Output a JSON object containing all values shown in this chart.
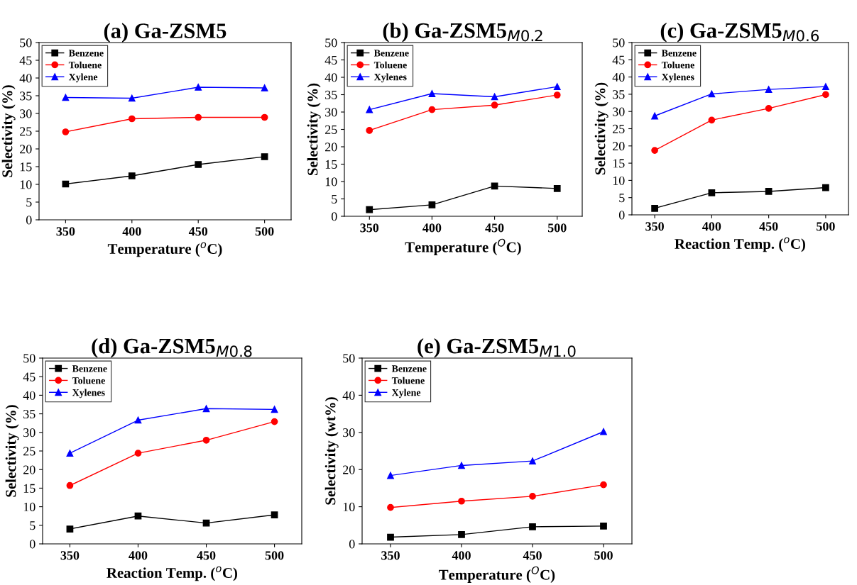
{
  "chart_data": [
    {
      "type": "line",
      "title": "(a) Ga-ZSM5",
      "xlabel": "Temperature ($^{o}$C)",
      "ylabel": "Selectivity (%)",
      "x": [
        350,
        400,
        450,
        500
      ],
      "xlim": [
        330,
        520
      ],
      "xticks": [
        350,
        400,
        450,
        500
      ],
      "ylim": [
        0,
        50
      ],
      "yticks": [
        0,
        5,
        10,
        15,
        20,
        25,
        30,
        35,
        40,
        45,
        50
      ],
      "legend": "top left",
      "grid": false,
      "series": [
        {
          "name": "Benzene",
          "color": "#000000",
          "marker": "square",
          "values": [
            10.1,
            12.4,
            15.6,
            17.8
          ]
        },
        {
          "name": "Toluene",
          "color": "#ff0000",
          "marker": "circle",
          "values": [
            24.8,
            28.5,
            28.9,
            28.9
          ]
        },
        {
          "name": "Xylene",
          "color": "#0000ff",
          "marker": "triangle",
          "values": [
            34.5,
            34.3,
            37.4,
            37.2
          ]
        }
      ]
    },
    {
      "type": "line",
      "title": "(b) Ga-ZSM5$_{M0.2}$",
      "xlabel": "Temperature ($^{O}$C)",
      "ylabel": "Selectivity (%)",
      "x": [
        350,
        400,
        450,
        500
      ],
      "xlim": [
        330,
        520
      ],
      "xticks": [
        350,
        400,
        450,
        500
      ],
      "ylim": [
        0,
        50
      ],
      "yticks": [
        0,
        5,
        10,
        15,
        20,
        25,
        30,
        35,
        40,
        45,
        50
      ],
      "legend": "top left",
      "grid": false,
      "series": [
        {
          "name": "Benzene",
          "color": "#000000",
          "marker": "square",
          "values": [
            1.9,
            3.3,
            8.7,
            8.0
          ]
        },
        {
          "name": "Toluene",
          "color": "#ff0000",
          "marker": "circle",
          "values": [
            24.7,
            30.7,
            32.0,
            34.9
          ]
        },
        {
          "name": "Xylenes",
          "color": "#0000ff",
          "marker": "triangle",
          "values": [
            30.7,
            35.3,
            34.4,
            37.3
          ]
        }
      ]
    },
    {
      "type": "line",
      "title": "(c) Ga-ZSM5$_{M0.6}$",
      "xlabel": "Reaction Temp. ($^{o}$C)",
      "ylabel": "Selectivity (%)",
      "x": [
        350,
        400,
        450,
        500
      ],
      "xlim": [
        330,
        520
      ],
      "xticks": [
        350,
        400,
        450,
        500
      ],
      "ylim": [
        0,
        50
      ],
      "yticks": [
        0,
        5,
        10,
        15,
        20,
        25,
        30,
        35,
        40,
        45,
        50
      ],
      "legend": "top left",
      "grid": false,
      "series": [
        {
          "name": "Benzene",
          "color": "#000000",
          "marker": "square",
          "values": [
            1.9,
            6.4,
            6.8,
            7.9
          ]
        },
        {
          "name": "Toluene",
          "color": "#ff0000",
          "marker": "circle",
          "values": [
            18.7,
            27.5,
            30.9,
            34.9
          ]
        },
        {
          "name": "Xylenes",
          "color": "#0000ff",
          "marker": "triangle",
          "values": [
            28.7,
            35.1,
            36.4,
            37.2
          ]
        }
      ]
    },
    {
      "type": "line",
      "title": "(d) Ga-ZSM5$_{M0.8}$",
      "xlabel": "Reaction Temp. ($^{o}$C)",
      "ylabel": "Selectivity (%)",
      "x": [
        350,
        400,
        450,
        500
      ],
      "xlim": [
        330,
        520
      ],
      "xticks": [
        350,
        400,
        450,
        500
      ],
      "ylim": [
        0,
        50
      ],
      "yticks": [
        0,
        5,
        10,
        15,
        20,
        25,
        30,
        35,
        40,
        45,
        50
      ],
      "legend": "top left",
      "grid": false,
      "series": [
        {
          "name": "Benzene",
          "color": "#000000",
          "marker": "square",
          "values": [
            4.0,
            7.5,
            5.6,
            7.8
          ]
        },
        {
          "name": "Toluene",
          "color": "#ff0000",
          "marker": "circle",
          "values": [
            15.7,
            24.4,
            27.9,
            32.9
          ]
        },
        {
          "name": "Xylenes",
          "color": "#0000ff",
          "marker": "triangle",
          "values": [
            24.4,
            33.3,
            36.4,
            36.2
          ]
        }
      ]
    },
    {
      "type": "line",
      "title": "(e) Ga-ZSM5$_{M1.0}$",
      "xlabel": "Temperature ($^{O}$C)",
      "ylabel": "Selectivity (wt%)",
      "x": [
        350,
        400,
        450,
        500
      ],
      "xlim": [
        330,
        520
      ],
      "xticks": [
        350,
        400,
        450,
        500
      ],
      "ylim": [
        0,
        50
      ],
      "yticks": [
        0,
        10,
        20,
        30,
        40,
        50
      ],
      "legend": "top left",
      "grid": false,
      "series": [
        {
          "name": "Benzene",
          "color": "#000000",
          "marker": "square",
          "values": [
            1.8,
            2.5,
            4.6,
            4.8
          ]
        },
        {
          "name": "Toluene",
          "color": "#ff0000",
          "marker": "circle",
          "values": [
            9.8,
            11.5,
            12.8,
            15.9
          ]
        },
        {
          "name": "Xylene",
          "color": "#0000ff",
          "marker": "triangle",
          "values": [
            18.4,
            21.1,
            22.3,
            30.2
          ]
        }
      ]
    }
  ]
}
